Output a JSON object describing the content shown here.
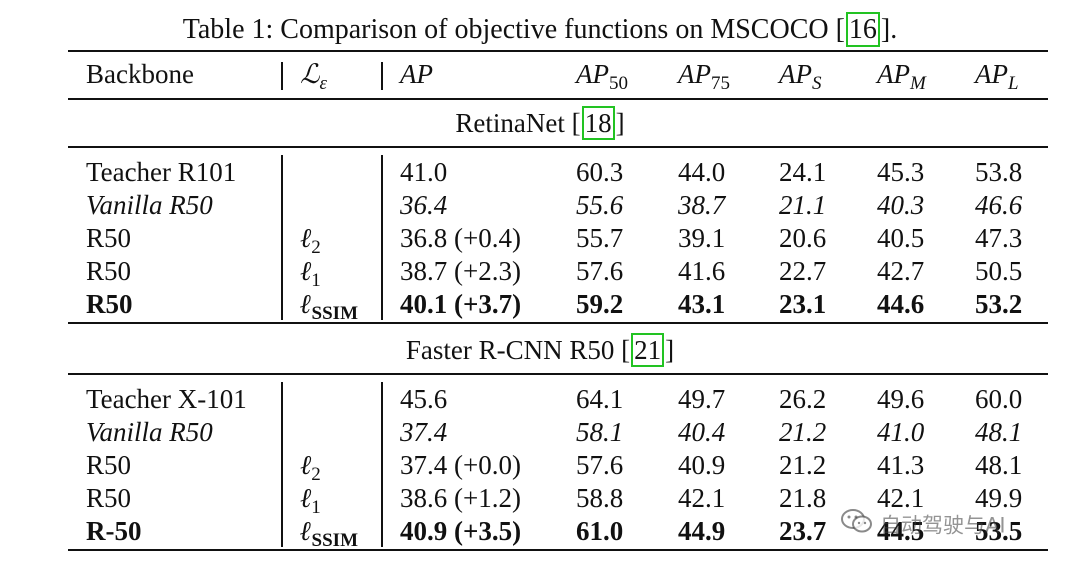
{
  "caption": {
    "prefix": "Table 1: Comparison of objective functions on MSCOCO [",
    "cite": "16",
    "suffix": "]."
  },
  "header": {
    "backbone": "Backbone",
    "loss_symbol": "ℒ",
    "loss_subscript": "ε",
    "ap": "AP",
    "ap50": "AP",
    "ap50_sub": "50",
    "ap75": "AP",
    "ap75_sub": "75",
    "aps": "AP",
    "aps_sub": "S",
    "apm": "AP",
    "apm_sub": "M",
    "apl": "AP",
    "apl_sub": "L"
  },
  "sections": [
    {
      "title_prefix": "RetinaNet [",
      "title_cite": "18",
      "title_suffix": "]",
      "rows": [
        {
          "backbone": "Teacher R101",
          "loss": "",
          "loss_sub": "",
          "ap": "41.0",
          "ap50": "60.3",
          "ap75": "44.0",
          "aps": "24.1",
          "apm": "45.3",
          "apl": "53.8",
          "style": "normal"
        },
        {
          "backbone": "Vanilla R50",
          "loss": "",
          "loss_sub": "",
          "ap": "36.4",
          "ap50": "55.6",
          "ap75": "38.7",
          "aps": "21.1",
          "apm": "40.3",
          "apl": "46.6",
          "style": "italic"
        },
        {
          "backbone": "R50",
          "loss": "ℓ",
          "loss_sub": "2",
          "ap": "36.8 (+0.4)",
          "ap50": "55.7",
          "ap75": "39.1",
          "aps": "20.6",
          "apm": "40.5",
          "apl": "47.3",
          "style": "normal"
        },
        {
          "backbone": "R50",
          "loss": "ℓ",
          "loss_sub": "1",
          "ap": "38.7 (+2.3)",
          "ap50": "57.6",
          "ap75": "41.6",
          "aps": "22.7",
          "apm": "42.7",
          "apl": "50.5",
          "style": "normal"
        },
        {
          "backbone": "R50",
          "loss": "ℓ",
          "loss_sub": "SSIM",
          "ap": "40.1 (+3.7)",
          "ap50": "59.2",
          "ap75": "43.1",
          "aps": "23.1",
          "apm": "44.6",
          "apl": "53.2",
          "style": "bold"
        }
      ]
    },
    {
      "title_prefix": "Faster R-CNN R50 [",
      "title_cite": "21",
      "title_suffix": "]",
      "rows": [
        {
          "backbone": "Teacher X-101",
          "loss": "",
          "loss_sub": "",
          "ap": "45.6",
          "ap50": "64.1",
          "ap75": "49.7",
          "aps": "26.2",
          "apm": "49.6",
          "apl": "60.0",
          "style": "normal"
        },
        {
          "backbone": "Vanilla R50",
          "loss": "",
          "loss_sub": "",
          "ap": "37.4",
          "ap50": "58.1",
          "ap75": "40.4",
          "aps": "21.2",
          "apm": "41.0",
          "apl": "48.1",
          "style": "italic"
        },
        {
          "backbone": "R50",
          "loss": "ℓ",
          "loss_sub": "2",
          "ap": "37.4 (+0.0)",
          "ap50": "57.6",
          "ap75": "40.9",
          "aps": "21.2",
          "apm": "41.3",
          "apl": "48.1",
          "style": "normal"
        },
        {
          "backbone": "R50",
          "loss": "ℓ",
          "loss_sub": "1",
          "ap": "38.6 (+1.2)",
          "ap50": "58.8",
          "ap75": "42.1",
          "aps": "21.8",
          "apm": "42.1",
          "apl": "49.9",
          "style": "normal"
        },
        {
          "backbone": "R-50",
          "loss": "ℓ",
          "loss_sub": "SSIM",
          "ap": "40.9 (+3.5)",
          "ap50": "61.0",
          "ap75": "44.9",
          "aps": "23.7",
          "apm": "44.5",
          "apl": "53.5",
          "style": "bold"
        }
      ]
    }
  ],
  "watermark": {
    "icon": "wechat-icon",
    "text": "自动驾驶与AI",
    "color": "#3c3c3c"
  }
}
